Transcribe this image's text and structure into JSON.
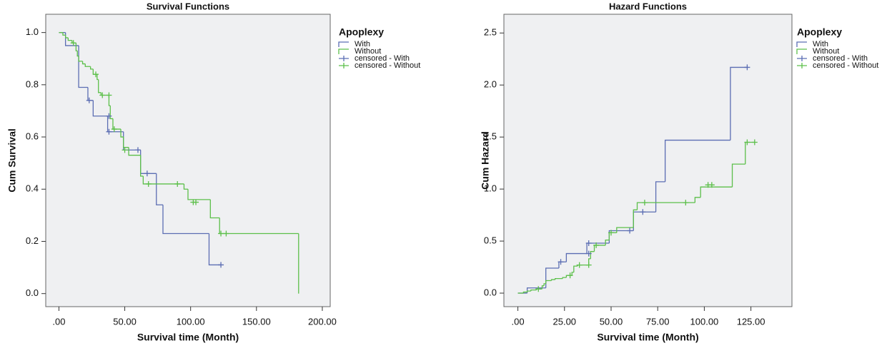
{
  "chart_data": [
    {
      "type": "step",
      "title": "Survival Functions",
      "x_label": "Survival time (Month)",
      "y_label": "Cum Survival",
      "legend_title": "Apoplexy",
      "xlim": [
        -10,
        206
      ],
      "ylim": [
        -0.05,
        1.07
      ],
      "xticks": [
        {
          "value": 0,
          "label": ".00"
        },
        {
          "value": 50,
          "label": "50.00"
        },
        {
          "value": 100,
          "label": "100.00"
        },
        {
          "value": 150,
          "label": "150.00"
        },
        {
          "value": 200,
          "label": "200.00"
        }
      ],
      "yticks": [
        {
          "value": 0,
          "label": "0.0"
        },
        0.2,
        0.4,
        0.6,
        0.8,
        {
          "value": 1,
          "label": "1.0"
        }
      ],
      "series": [
        {
          "name": "With",
          "style": "step",
          "color": "#5b6db3",
          "x": [
            0,
            5,
            15,
            22,
            26,
            37,
            49,
            62,
            74,
            79,
            114,
            123
          ],
          "values": [
            1.0,
            0.95,
            0.79,
            0.74,
            0.68,
            0.62,
            0.55,
            0.46,
            0.34,
            0.23,
            0.11,
            0.11
          ]
        },
        {
          "name": "Without",
          "style": "step",
          "color": "#5cbf4a",
          "x": [
            0,
            3,
            5,
            7,
            10,
            13,
            14,
            15,
            18,
            20,
            24,
            26,
            29,
            30,
            32,
            38,
            39,
            41,
            47,
            49,
            53,
            62,
            64,
            95,
            98,
            115,
            122,
            182
          ],
          "values": [
            1.0,
            0.99,
            0.98,
            0.97,
            0.96,
            0.93,
            0.91,
            0.89,
            0.88,
            0.87,
            0.86,
            0.84,
            0.82,
            0.77,
            0.76,
            0.72,
            0.67,
            0.63,
            0.6,
            0.56,
            0.53,
            0.45,
            0.42,
            0.4,
            0.36,
            0.29,
            0.23,
            0.0
          ]
        },
        {
          "name": "censored - With",
          "style": "plus",
          "color": "#5b6db3",
          "x": [
            23,
            38,
            38,
            60,
            67,
            123
          ],
          "values": [
            0.74,
            0.68,
            0.62,
            0.55,
            0.46,
            0.11
          ]
        },
        {
          "name": "censored - Without",
          "style": "plus",
          "color": "#5cbf4a",
          "x": [
            11,
            28,
            33,
            38,
            42,
            50,
            68,
            90,
            102,
            104,
            123,
            127
          ],
          "values": [
            0.96,
            0.84,
            0.76,
            0.76,
            0.63,
            0.55,
            0.42,
            0.42,
            0.35,
            0.35,
            0.23,
            0.23
          ]
        }
      ]
    },
    {
      "type": "step",
      "title": "Hazard Functions",
      "x_label": "Survival time (Month)",
      "y_label": "Cum Hazard",
      "legend_title": "Apoplexy",
      "xlim": [
        -7.5,
        147
      ],
      "ylim": [
        -0.13,
        2.68
      ],
      "xticks": [
        {
          "value": 0,
          "label": ".00"
        },
        {
          "value": 25,
          "label": "25.00"
        },
        {
          "value": 50,
          "label": "50.00"
        },
        {
          "value": 75,
          "label": "75.00"
        },
        {
          "value": 100,
          "label": "100.00"
        },
        {
          "value": 125,
          "label": "125.00"
        }
      ],
      "yticks": [
        {
          "value": 0,
          "label": "0.0"
        },
        0.5,
        {
          "value": 1,
          "label": "1.0"
        },
        1.5,
        {
          "value": 2,
          "label": "2.0"
        },
        2.5
      ],
      "series": [
        {
          "name": "With",
          "style": "step",
          "color": "#5b6db3",
          "x": [
            0,
            5,
            15,
            22,
            26,
            37,
            49,
            62,
            74,
            79,
            114,
            123
          ],
          "values": [
            0.0,
            0.05,
            0.24,
            0.3,
            0.38,
            0.48,
            0.6,
            0.78,
            1.07,
            1.47,
            2.17,
            2.17
          ]
        },
        {
          "name": "Without",
          "style": "step",
          "color": "#5cbf4a",
          "x": [
            0,
            3,
            5,
            7,
            10,
            13,
            14,
            15,
            18,
            20,
            24,
            26,
            29,
            30,
            32,
            38,
            39,
            41,
            47,
            49,
            53,
            62,
            64,
            95,
            98,
            115,
            122,
            127
          ],
          "values": [
            0.0,
            0.01,
            0.02,
            0.03,
            0.04,
            0.07,
            0.09,
            0.12,
            0.13,
            0.14,
            0.15,
            0.17,
            0.2,
            0.26,
            0.27,
            0.33,
            0.4,
            0.46,
            0.51,
            0.58,
            0.63,
            0.8,
            0.87,
            0.92,
            1.02,
            1.24,
            1.45,
            1.45
          ]
        },
        {
          "name": "censored - With",
          "style": "plus",
          "color": "#5b6db3",
          "x": [
            23,
            38,
            38,
            60,
            67,
            123
          ],
          "values": [
            0.3,
            0.38,
            0.48,
            0.6,
            0.78,
            2.17
          ]
        },
        {
          "name": "censored - Without",
          "style": "plus",
          "color": "#5cbf4a",
          "x": [
            11,
            28,
            33,
            38,
            42,
            50,
            68,
            90,
            102,
            104,
            123,
            127
          ],
          "values": [
            0.04,
            0.17,
            0.27,
            0.27,
            0.46,
            0.58,
            0.87,
            0.87,
            1.04,
            1.04,
            1.45,
            1.45
          ]
        }
      ]
    }
  ]
}
